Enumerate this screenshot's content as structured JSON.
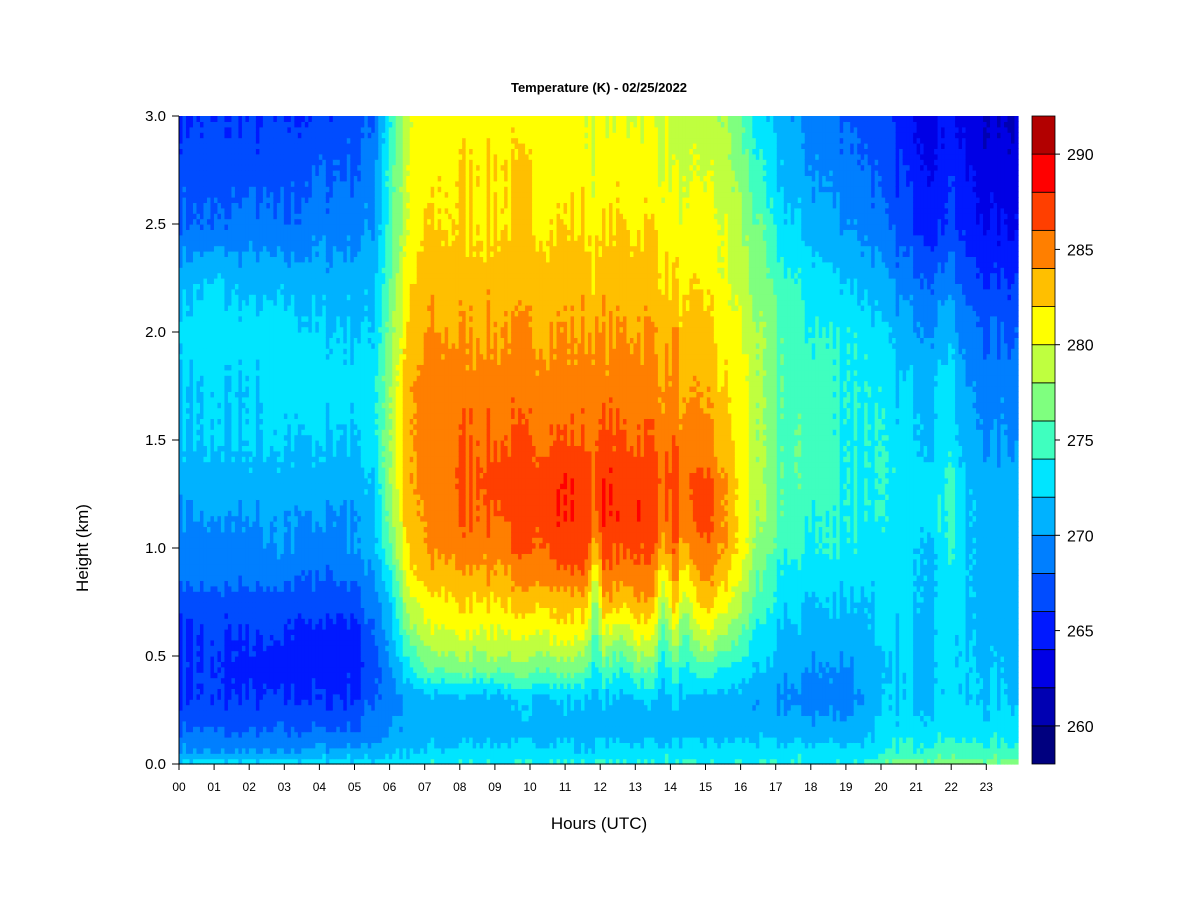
{
  "chart_data": {
    "type": "heatmap",
    "title": "Temperature (K) - 02/25/2022",
    "xlabel": "Hours (UTC)",
    "ylabel": "Height (km)",
    "xlim": [
      0,
      23.85
    ],
    "ylim": [
      0,
      3.0
    ],
    "x_ticks": [
      "00",
      "01",
      "02",
      "03",
      "04",
      "05",
      "06",
      "07",
      "08",
      "09",
      "10",
      "11",
      "12",
      "13",
      "14",
      "15",
      "16",
      "17",
      "18",
      "19",
      "20",
      "21",
      "22",
      "23"
    ],
    "y_ticks": [
      "0.0",
      "0.5",
      "1.0",
      "1.5",
      "2.0",
      "2.5",
      "3.0"
    ],
    "colorbar": {
      "min": 258,
      "max": 292,
      "levels": [
        258,
        260,
        262,
        264,
        266,
        268,
        270,
        272,
        274,
        276,
        278,
        280,
        282,
        284,
        286,
        288,
        290,
        292
      ],
      "colors": [
        "#00007f",
        "#0000b2",
        "#0000e5",
        "#0019ff",
        "#004cff",
        "#007fff",
        "#00b2ff",
        "#00e5ff",
        "#3fffbf",
        "#7fff7f",
        "#bfff3f",
        "#ffff00",
        "#ffbf00",
        "#ff7f00",
        "#ff3f00",
        "#ff0000",
        "#b20000",
        "#7f0000"
      ],
      "tick_labels": [
        "260",
        "265",
        "270",
        "275",
        "280",
        "285",
        "290"
      ],
      "tick_values": [
        260,
        265,
        270,
        275,
        280,
        285,
        290
      ]
    },
    "heights_km": [
      0.0,
      0.05,
      0.15,
      0.3,
      0.45,
      0.6,
      0.75,
      0.9,
      1.0,
      1.15,
      1.3,
      1.5,
      1.75,
      2.0,
      2.25,
      2.5,
      2.75,
      3.0
    ],
    "profiles": [
      {
        "hour": 0.0,
        "temps": [
          273,
          271,
          268,
          266,
          266,
          266,
          267,
          269,
          269,
          270,
          271,
          272,
          272,
          273,
          271,
          268,
          267,
          266
        ]
      },
      {
        "hour": 1.0,
        "temps": [
          273,
          270,
          268,
          266,
          266,
          266,
          267,
          269,
          269,
          270,
          271,
          272,
          272,
          273,
          272,
          268,
          267,
          266
        ]
      },
      {
        "hour": 2.0,
        "temps": [
          273,
          270,
          268,
          266,
          265,
          266,
          267,
          269,
          269,
          270,
          271,
          272,
          272,
          273,
          271,
          269,
          267,
          266
        ]
      },
      {
        "hour": 3.0,
        "temps": [
          273,
          270,
          268,
          266,
          265,
          266,
          267,
          269,
          270,
          270,
          271,
          272,
          273,
          273,
          271,
          268,
          267,
          266
        ]
      },
      {
        "hour": 4.0,
        "temps": [
          273,
          271,
          268,
          266,
          265,
          265,
          267,
          268,
          269,
          270,
          271,
          272,
          273,
          272,
          271,
          269,
          268,
          266
        ]
      },
      {
        "hour": 5.0,
        "temps": [
          273,
          271,
          268,
          266,
          265,
          265,
          267,
          269,
          270,
          270,
          271,
          272,
          273,
          272,
          271,
          269,
          268,
          267
        ]
      },
      {
        "hour": 5.5,
        "temps": [
          273,
          271,
          269,
          268,
          267,
          268,
          269,
          270,
          271,
          271,
          272,
          273,
          273,
          272,
          271,
          270,
          269,
          268
        ]
      },
      {
        "hour": 6.0,
        "temps": [
          273,
          272,
          270,
          269,
          270,
          271,
          272,
          274,
          276,
          277,
          278,
          278,
          278,
          277,
          276,
          275,
          275,
          274
        ]
      },
      {
        "hour": 6.5,
        "temps": [
          273,
          272,
          271,
          270,
          273,
          276,
          279,
          281,
          282,
          283,
          283,
          283,
          283,
          282,
          281,
          280,
          280,
          279
        ]
      },
      {
        "hour": 7.0,
        "temps": [
          274,
          272,
          271,
          271,
          276,
          279,
          281,
          283,
          284,
          284,
          285,
          285,
          285,
          284,
          283,
          282,
          281,
          281
        ]
      },
      {
        "hour": 8.0,
        "temps": [
          274,
          273,
          271,
          271,
          277,
          280,
          282,
          284,
          285,
          286,
          286,
          286,
          285,
          284,
          283,
          282,
          282,
          281
        ]
      },
      {
        "hour": 9.0,
        "temps": [
          274,
          273,
          271,
          271,
          277,
          280,
          282,
          284,
          285,
          286,
          287,
          286,
          285,
          284,
          283,
          282,
          282,
          281
        ]
      },
      {
        "hour": 10.0,
        "temps": [
          274,
          273,
          271,
          272,
          277,
          280,
          283,
          285,
          286,
          287,
          287,
          286,
          285,
          284,
          283,
          282,
          282,
          281
        ]
      },
      {
        "hour": 11.0,
        "temps": [
          274,
          273,
          271,
          272,
          277,
          281,
          283,
          286,
          287,
          288,
          288,
          286,
          285,
          284,
          283,
          282,
          281,
          281
        ]
      },
      {
        "hour": 11.6,
        "temps": [
          274,
          272,
          271,
          272,
          276,
          280,
          283,
          286,
          287,
          287,
          287,
          286,
          285,
          284,
          283,
          282,
          281,
          280
        ]
      },
      {
        "hour": 11.85,
        "temps": [
          274,
          273,
          271,
          271,
          273,
          275,
          277,
          280,
          283,
          285,
          286,
          285,
          285,
          284,
          282,
          281,
          280,
          280
        ]
      },
      {
        "hour": 12.1,
        "temps": [
          274,
          273,
          271,
          272,
          276,
          280,
          284,
          286,
          287,
          288,
          288,
          287,
          285,
          284,
          283,
          282,
          281,
          280
        ]
      },
      {
        "hour": 12.6,
        "temps": [
          274,
          273,
          271,
          271,
          274,
          278,
          282,
          285,
          286,
          287,
          287,
          286,
          285,
          284,
          283,
          282,
          281,
          280
        ]
      },
      {
        "hour": 13.0,
        "temps": [
          274,
          273,
          271,
          272,
          277,
          281,
          284,
          286,
          287,
          288,
          288,
          286,
          285,
          284,
          283,
          282,
          281,
          280
        ]
      },
      {
        "hour": 13.5,
        "temps": [
          274,
          273,
          271,
          272,
          276,
          280,
          283,
          285,
          286,
          287,
          287,
          286,
          285,
          284,
          283,
          282,
          281,
          280
        ]
      },
      {
        "hour": 13.8,
        "temps": [
          274,
          273,
          271,
          271,
          273,
          275,
          278,
          281,
          284,
          285,
          286,
          285,
          284,
          283,
          282,
          281,
          280,
          280
        ]
      },
      {
        "hour": 14.1,
        "temps": [
          274,
          273,
          271,
          272,
          276,
          280,
          283,
          285,
          286,
          287,
          287,
          286,
          285,
          284,
          282,
          281,
          280,
          279
        ]
      },
      {
        "hour": 14.4,
        "temps": [
          274,
          273,
          271,
          271,
          273,
          275,
          278,
          281,
          283,
          284,
          285,
          284,
          283,
          282,
          281,
          280,
          279,
          279
        ]
      },
      {
        "hour": 14.9,
        "temps": [
          274,
          273,
          271,
          271,
          276,
          280,
          283,
          285,
          286,
          287,
          287,
          285,
          284,
          283,
          282,
          281,
          280,
          279
        ]
      },
      {
        "hour": 15.5,
        "temps": [
          274,
          273,
          271,
          271,
          274,
          278,
          281,
          283,
          284,
          284,
          284,
          283,
          282,
          281,
          280,
          280,
          279,
          278
        ]
      },
      {
        "hour": 16.0,
        "temps": [
          274,
          273,
          271,
          271,
          273,
          276,
          278,
          280,
          281,
          281,
          281,
          281,
          281,
          280,
          279,
          278,
          277,
          276
        ]
      },
      {
        "hour": 16.5,
        "temps": [
          274,
          273,
          271,
          270,
          272,
          273,
          275,
          276,
          277,
          278,
          278,
          278,
          278,
          278,
          277,
          276,
          274,
          273
        ]
      },
      {
        "hour": 17.0,
        "temps": [
          274,
          273,
          271,
          270,
          271,
          272,
          273,
          274,
          275,
          276,
          276,
          276,
          276,
          276,
          275,
          273,
          272,
          271
        ]
      },
      {
        "hour": 18.0,
        "temps": [
          274,
          273,
          271,
          269,
          270,
          271,
          272,
          273,
          274,
          274,
          275,
          275,
          275,
          274,
          273,
          271,
          270,
          269
        ]
      },
      {
        "hour": 19.0,
        "temps": [
          274,
          273,
          271,
          269,
          270,
          271,
          272,
          273,
          274,
          274,
          274,
          274,
          274,
          274,
          272,
          270,
          269,
          268
        ]
      },
      {
        "hour": 19.7,
        "temps": [
          275,
          273,
          272,
          271,
          271,
          272,
          272,
          273,
          273,
          274,
          274,
          274,
          274,
          273,
          271,
          269,
          268,
          267
        ]
      },
      {
        "hour": 20.5,
        "temps": [
          277,
          275,
          273,
          272,
          272,
          272,
          273,
          273,
          273,
          273,
          273,
          273,
          272,
          271,
          269,
          267,
          266,
          265
        ]
      },
      {
        "hour": 21.5,
        "temps": [
          277,
          275,
          273,
          272,
          272,
          272,
          272,
          272,
          272,
          273,
          273,
          272,
          272,
          270,
          268,
          265,
          264,
          263
        ]
      },
      {
        "hour": 21.9,
        "temps": [
          278,
          276,
          274,
          273,
          273,
          273,
          274,
          274,
          275,
          275,
          275,
          274,
          274,
          272,
          270,
          267,
          266,
          265
        ]
      },
      {
        "hour": 22.3,
        "temps": [
          277,
          275,
          273,
          272,
          272,
          272,
          272,
          272,
          272,
          272,
          272,
          271,
          270,
          269,
          267,
          265,
          264,
          263
        ]
      },
      {
        "hour": 23.0,
        "temps": [
          277,
          275,
          273,
          272,
          272,
          271,
          271,
          271,
          271,
          271,
          271,
          270,
          269,
          268,
          266,
          264,
          263,
          262
        ]
      },
      {
        "hour": 23.85,
        "temps": [
          277,
          275,
          273,
          272,
          271,
          271,
          271,
          271,
          271,
          271,
          271,
          270,
          269,
          268,
          266,
          264,
          263,
          262
        ]
      }
    ]
  }
}
